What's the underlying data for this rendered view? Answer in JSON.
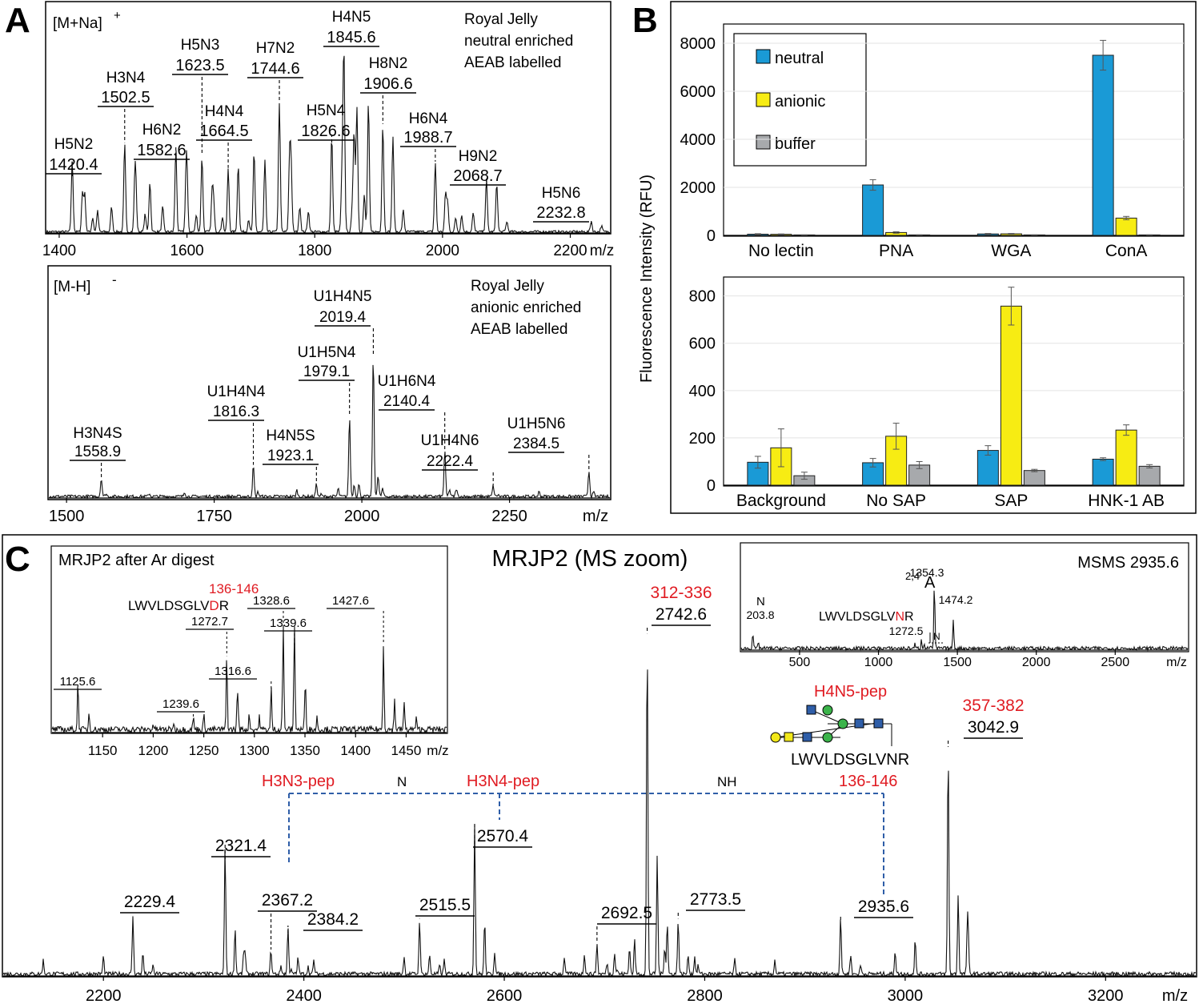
{
  "colors": {
    "neutral": "#1a9ad6",
    "anionic": "#f7ec13",
    "buffer": "#a7a9ac",
    "red": "#e01b22",
    "blue": "#2f5ea8",
    "green": "#3bb34a",
    "yellow": "#f2e81a"
  },
  "panels": {
    "A": "A",
    "B": "B",
    "C": "C"
  },
  "chart_data": [
    {
      "id": "A1",
      "type": "line",
      "ion_label": "[M+Na]",
      "ion_charge": "+",
      "annotation": [
        "Royal Jelly",
        "neutral enriched",
        "AEAB labelled"
      ],
      "xlabel": "m/z",
      "xlim": [
        1380,
        2262
      ],
      "xticks": [
        1400,
        1600,
        1800,
        2000,
        2200
      ],
      "peaks": [
        {
          "name": "H5N2",
          "mz": "1420.4",
          "x": 1420.4,
          "h": 0.34
        },
        {
          "name": "H3N4",
          "mz": "1502.5",
          "x": 1502.5,
          "h": 0.42
        },
        {
          "name": "H6N2",
          "mz": "1582.6",
          "x": 1582.6,
          "h": 0.4
        },
        {
          "name": "H5N3",
          "mz": "1623.5",
          "x": 1623.5,
          "h": 0.36
        },
        {
          "name": "H4N4",
          "mz": "1664.5",
          "x": 1664.5,
          "h": 0.3
        },
        {
          "name": "H7N2",
          "mz": "1744.6",
          "x": 1744.6,
          "h": 0.62
        },
        {
          "name": "H5N4",
          "mz": "1826.6",
          "x": 1826.6,
          "h": 0.46
        },
        {
          "name": "H4N5",
          "mz": "1845.6",
          "x": 1845.6,
          "h": 0.87
        },
        {
          "name": "H8N2",
          "mz": "1906.6",
          "x": 1906.6,
          "h": 0.51
        },
        {
          "name": "H6N4",
          "mz": "1988.7",
          "x": 1988.7,
          "h": 0.33
        },
        {
          "name": "H9N2",
          "mz": "2068.7",
          "x": 2068.7,
          "h": 0.25
        },
        {
          "name": "H5N6",
          "mz": "2232.8",
          "x": 2232.8,
          "h": 0.05
        }
      ]
    },
    {
      "id": "A2",
      "type": "line",
      "ion_label": "[M-H]",
      "ion_charge": "-",
      "annotation": [
        "Royal Jelly",
        "anionic enriched",
        "AEAB labelled"
      ],
      "xlabel": "m/z",
      "xlim": [
        1470,
        2420
      ],
      "xticks": [
        1500,
        1750,
        2000,
        2250
      ],
      "peaks": [
        {
          "name": "H3N4S",
          "mz": "1558.9",
          "x": 1558.9,
          "h": 0.12
        },
        {
          "name": "U1H4N4",
          "mz": "1816.3",
          "x": 1816.3,
          "h": 0.2
        },
        {
          "name": "H4N5S",
          "mz": "1923.1",
          "x": 1923.1,
          "h": 0.08
        },
        {
          "name": "U1H5N4",
          "mz": "1979.1",
          "x": 1979.1,
          "h": 0.52
        },
        {
          "name": "U1H4N5",
          "mz": "2019.4",
          "x": 2019.4,
          "h": 0.92
        },
        {
          "name": "U1H6N4",
          "mz": "2140.4",
          "x": 2140.4,
          "h": 0.3
        },
        {
          "name": "U1H4N6",
          "mz": "2222.4",
          "x": 2222.4,
          "h": 0.07
        },
        {
          "name": "U1H5N6",
          "mz": "2384.5",
          "x": 2384.5,
          "h": 0.17
        }
      ]
    },
    {
      "id": "B1",
      "type": "bar",
      "categories": [
        "No lectin",
        "PNA",
        "WGA",
        "ConA"
      ],
      "series": [
        {
          "name": "neutral",
          "values": [
            50,
            2100,
            60,
            7500
          ],
          "err": [
            20,
            220,
            20,
            620
          ]
        },
        {
          "name": "anionic",
          "values": [
            45,
            120,
            65,
            720
          ],
          "err": [
            15,
            30,
            15,
            70
          ]
        },
        {
          "name": "buffer",
          "values": [
            20,
            20,
            20,
            20
          ],
          "err": [
            5,
            5,
            5,
            5
          ]
        }
      ],
      "ylim": [
        0,
        8800
      ],
      "yticks": [
        0,
        2000,
        4000,
        6000,
        8000
      ]
    },
    {
      "id": "B2",
      "type": "bar",
      "categories": [
        "Background",
        "No SAP",
        "SAP",
        "HNK-1 AB"
      ],
      "series": [
        {
          "name": "neutral",
          "values": [
            97,
            95,
            147,
            110
          ],
          "err": [
            25,
            18,
            20,
            6
          ]
        },
        {
          "name": "anionic",
          "values": [
            158,
            207,
            757,
            233
          ],
          "err": [
            80,
            55,
            80,
            22
          ]
        },
        {
          "name": "buffer",
          "values": [
            40,
            85,
            62,
            80
          ],
          "err": [
            15,
            15,
            5,
            7
          ]
        }
      ],
      "ylim": [
        0,
        880
      ],
      "yticks": [
        0,
        200,
        400,
        600,
        800
      ],
      "ylabel": "Fluorescence Intensity (RFU)"
    },
    {
      "id": "C",
      "type": "line",
      "title": "MRJP2 (MS zoom)",
      "xlabel": "m/z",
      "xlim": [
        2100,
        3290
      ],
      "xticks": [
        2200,
        2400,
        2600,
        2800,
        3000,
        3200
      ],
      "peaks": [
        {
          "mz": "2229.4",
          "x": 2229.4,
          "h": 0.17
        },
        {
          "mz": "2321.4",
          "x": 2321.4,
          "h": 0.38
        },
        {
          "mz": "2367.2",
          "x": 2367.2,
          "h": 0.07
        },
        {
          "mz": "2384.2",
          "x": 2384.2,
          "h": 0.14
        },
        {
          "mz": "2515.5",
          "x": 2515.5,
          "h": 0.16
        },
        {
          "mz": "2570.4",
          "x": 2570.4,
          "h": 0.44
        },
        {
          "mz": "2692.5",
          "x": 2692.5,
          "h": 0.09
        },
        {
          "mz": "2742.6",
          "x": 2742.6,
          "h": 0.99
        },
        {
          "mz": "2773.5",
          "x": 2773.5,
          "h": 0.16
        },
        {
          "mz": "2935.6",
          "x": 2935.6,
          "h": 0.17
        },
        {
          "mz": "3042.9",
          "x": 3042.9,
          "h": 0.66
        }
      ],
      "peak_tags": [
        {
          "at": "2742.6",
          "text": "312-336"
        },
        {
          "at": "3042.9",
          "text": "357-382"
        }
      ],
      "ladder": {
        "labels": [
          "H3N3-pep",
          "H3N4-pep",
          "136-146"
        ],
        "steps": [
          "N",
          "NH"
        ],
        "glycan_label": "H4N5-pep",
        "peptide": "LWVLDSGLVNR"
      }
    },
    {
      "id": "C_inset1",
      "type": "line",
      "title": "MRJP2 after Ar digest",
      "xlabel": "m/z",
      "xlim": [
        1100,
        1490
      ],
      "xticks": [
        1150,
        1200,
        1250,
        1300,
        1350,
        1400,
        1450
      ],
      "peaks": [
        {
          "mz": "1125.6",
          "x": 1125.6,
          "h": 0.45
        },
        {
          "mz": "1239.6",
          "x": 1239.6,
          "h": 0.12
        },
        {
          "mz": "1272.7",
          "x": 1272.7,
          "h": 0.72
        },
        {
          "mz": "1316.6",
          "x": 1316.6,
          "h": 0.4
        },
        {
          "mz": "1328.6",
          "x": 1328.6,
          "h": 0.98
        },
        {
          "mz": "1339.6",
          "x": 1339.6,
          "h": 0.82
        },
        {
          "mz": "1427.6",
          "x": 1427.6,
          "h": 0.84
        }
      ],
      "peptide": {
        "range": "136-146",
        "pre": "LWVLDSGLV",
        "mut": "D",
        "post": "R"
      }
    },
    {
      "id": "C_inset2",
      "type": "line",
      "title": "MSMS 2935.6",
      "xlabel": "m/z",
      "xlim": [
        130,
        2960
      ],
      "xticks": [
        500,
        1000,
        1500,
        2000,
        2500
      ],
      "peaks": [
        {
          "mz": "203.8",
          "x": 203.8,
          "h": 0.23
        },
        {
          "mz": "1272.5",
          "x": 1272.5,
          "h": 0.12
        },
        {
          "mz": "1354.3",
          "x": 1354.3,
          "h": 0.95
        },
        {
          "mz": "1474.2",
          "x": 1474.2,
          "h": 0.42
        }
      ],
      "frag_label": "A",
      "frag_sup": "2,4",
      "ions": [
        "N",
        "N"
      ],
      "peptide": {
        "pre": "LWVLDSGLV",
        "mut": "N",
        "post": "R"
      }
    }
  ]
}
